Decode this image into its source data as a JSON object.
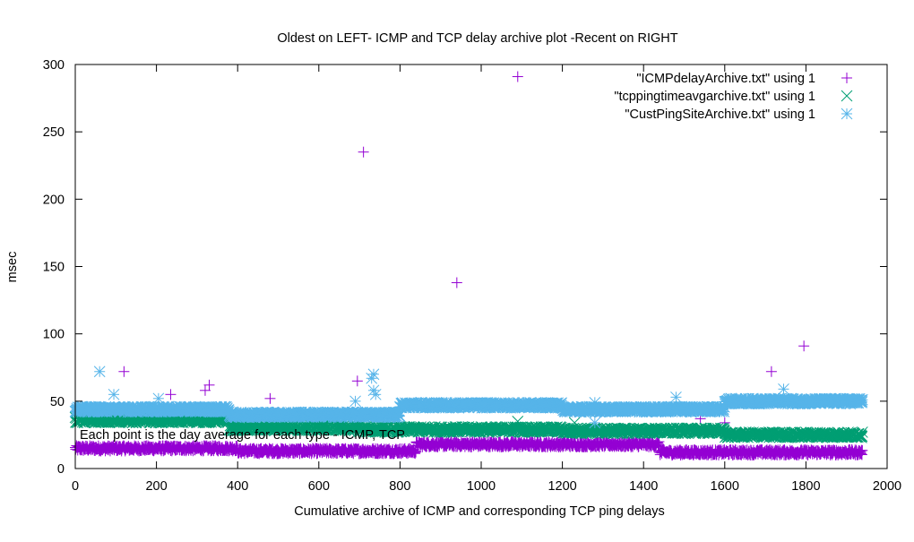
{
  "chart_data": {
    "type": "scatter",
    "title": "Oldest on LEFT- ICMP and TCP delay archive plot -Recent on RIGHT",
    "xlabel": "Cumulative archive of ICMP and corresponding TCP ping delays",
    "ylabel": "msec",
    "xlim": [
      0,
      2000
    ],
    "ylim": [
      0,
      300
    ],
    "xticks": [
      0,
      200,
      400,
      600,
      800,
      1000,
      1200,
      1400,
      1600,
      1800,
      2000
    ],
    "yticks": [
      0,
      50,
      100,
      150,
      200,
      250,
      300
    ],
    "grid": false,
    "legend_position": "top-right",
    "annotation": "Each point is the day average for each type - ICMP, TCP",
    "series": [
      {
        "name": "\"ICMPdelayArchive.txt\" using 1",
        "marker": "plus",
        "color": "#9400d3",
        "segments": [
          {
            "x": [
              0,
              400
            ],
            "y": 15
          },
          {
            "x": [
              400,
              840
            ],
            "y": 13
          },
          {
            "x": [
              840,
              1440
            ],
            "y": 18
          },
          {
            "x": [
              1440,
              1940
            ],
            "y": 12
          }
        ],
        "outliers": [
          {
            "x": 120,
            "y": 72
          },
          {
            "x": 235,
            "y": 55
          },
          {
            "x": 320,
            "y": 58
          },
          {
            "x": 330,
            "y": 62
          },
          {
            "x": 480,
            "y": 52
          },
          {
            "x": 695,
            "y": 65
          },
          {
            "x": 710,
            "y": 235
          },
          {
            "x": 940,
            "y": 138
          },
          {
            "x": 1090,
            "y": 291
          },
          {
            "x": 1540,
            "y": 37
          },
          {
            "x": 1600,
            "y": 34
          },
          {
            "x": 1715,
            "y": 72
          },
          {
            "x": 1795,
            "y": 91
          }
        ]
      },
      {
        "name": "\"tcppingtimeavgarchive.txt\" using 1",
        "marker": "x",
        "color": "#009e73",
        "segments": [
          {
            "x": [
              0,
              380
            ],
            "y": 36
          },
          {
            "x": [
              380,
              700
            ],
            "y": 30
          },
          {
            "x": [
              700,
              1200
            ],
            "y": 29
          },
          {
            "x": [
              1200,
              1600
            ],
            "y": 28
          },
          {
            "x": [
              1600,
              1940
            ],
            "y": 25
          }
        ],
        "outliers": [
          {
            "x": 740,
            "y": 35
          },
          {
            "x": 1090,
            "y": 35
          },
          {
            "x": 1230,
            "y": 34
          }
        ]
      },
      {
        "name": "\"CustPingSiteArchive.txt\" using 1",
        "marker": "star",
        "color": "#56b4e9",
        "segments": [
          {
            "x": [
              0,
              380
            ],
            "y": 44
          },
          {
            "x": [
              380,
              800
            ],
            "y": 40
          },
          {
            "x": [
              800,
              1200
            ],
            "y": 47
          },
          {
            "x": [
              1200,
              1600
            ],
            "y": 44
          },
          {
            "x": [
              1600,
              1940
            ],
            "y": 50
          }
        ],
        "outliers": [
          {
            "x": 60,
            "y": 72
          },
          {
            "x": 95,
            "y": 55
          },
          {
            "x": 205,
            "y": 52
          },
          {
            "x": 690,
            "y": 50
          },
          {
            "x": 730,
            "y": 67
          },
          {
            "x": 735,
            "y": 70
          },
          {
            "x": 735,
            "y": 58
          },
          {
            "x": 740,
            "y": 55
          },
          {
            "x": 1280,
            "y": 34
          },
          {
            "x": 1280,
            "y": 49
          },
          {
            "x": 1480,
            "y": 53
          },
          {
            "x": 1745,
            "y": 59
          }
        ]
      }
    ]
  }
}
